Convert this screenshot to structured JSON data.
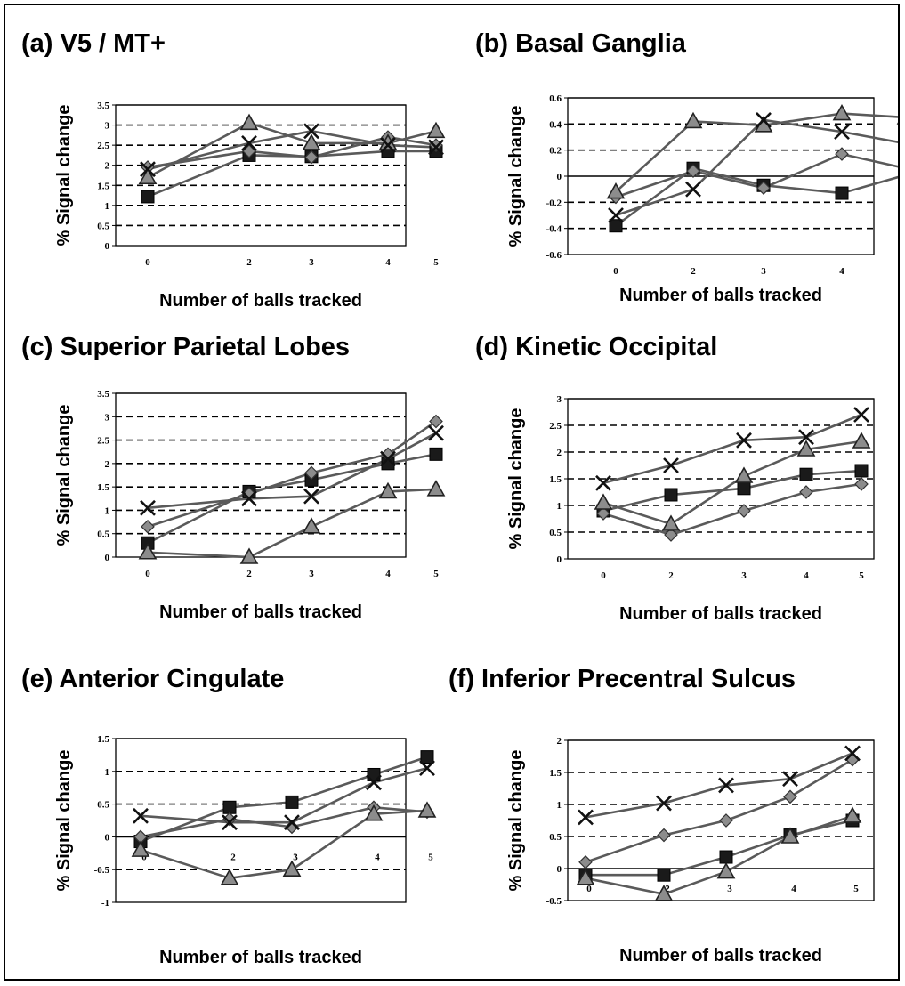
{
  "colors": {
    "series_line": "#5a5a5a",
    "marker_fill_dark": "#1a1a1a",
    "marker_fill_grey": "#8c8c8c",
    "grid": "#000000"
  },
  "chart_data": [
    {
      "type": "line",
      "title": "(a) V5 / MT+",
      "xlabel": "Number of balls tracked",
      "ylabel": "% Signal change",
      "categories": [
        "0",
        "2",
        "3",
        "4",
        "5"
      ],
      "ylim": [
        0,
        3.5
      ],
      "yticks": [
        0,
        0.5,
        1,
        1.5,
        2,
        2.5,
        3,
        3.5
      ],
      "zero_line": false,
      "series": [
        {
          "marker": "square",
          "values": [
            1.22,
            2.25,
            2.22,
            2.35,
            2.35
          ]
        },
        {
          "marker": "diamond",
          "values": [
            1.95,
            2.35,
            2.2,
            2.7,
            2.5
          ]
        },
        {
          "marker": "triangle",
          "values": [
            1.7,
            3.05,
            2.55,
            2.55,
            2.85
          ]
        },
        {
          "marker": "cross",
          "values": [
            1.9,
            2.55,
            2.85,
            2.5,
            2.45
          ]
        }
      ]
    },
    {
      "type": "line",
      "title": "(b) Basal Ganglia",
      "xlabel": "Number of balls tracked",
      "ylabel": "% Signal change",
      "categories": [
        "0",
        "2",
        "3",
        "4",
        "5"
      ],
      "ylim": [
        -0.6,
        0.6
      ],
      "yticks": [
        -0.6,
        -0.4,
        -0.2,
        0,
        0.2,
        0.4,
        0.6
      ],
      "zero_line": true,
      "series": [
        {
          "marker": "square",
          "values": [
            -0.38,
            0.06,
            -0.07,
            -0.13,
            0.01
          ]
        },
        {
          "marker": "diamond",
          "values": [
            -0.16,
            0.04,
            -0.09,
            0.17,
            0.06
          ]
        },
        {
          "marker": "triangle",
          "values": [
            -0.12,
            0.42,
            0.39,
            0.48,
            0.45
          ]
        },
        {
          "marker": "cross",
          "values": [
            -0.3,
            -0.1,
            0.43,
            0.34,
            0.25
          ]
        }
      ]
    },
    {
      "type": "line",
      "title": "(c) Superior Parietal Lobes",
      "xlabel": "Number of balls tracked",
      "ylabel": "% Signal change",
      "categories": [
        "0",
        "2",
        "3",
        "4",
        "5"
      ],
      "ylim": [
        0,
        3.5
      ],
      "yticks": [
        0,
        0.5,
        1,
        1.5,
        2,
        2.5,
        3,
        3.5
      ],
      "zero_line": false,
      "series": [
        {
          "marker": "square",
          "values": [
            0.3,
            1.4,
            1.65,
            2.0,
            2.2
          ]
        },
        {
          "marker": "diamond",
          "values": [
            0.65,
            1.35,
            1.8,
            2.2,
            2.9
          ]
        },
        {
          "marker": "triangle",
          "values": [
            0.1,
            0.0,
            0.65,
            1.4,
            1.45
          ]
        },
        {
          "marker": "cross",
          "values": [
            1.05,
            1.25,
            1.3,
            2.1,
            2.65
          ]
        }
      ]
    },
    {
      "type": "line",
      "title": "(d) Kinetic Occipital",
      "xlabel": "Number of balls tracked",
      "ylabel": "% Signal change",
      "categories": [
        "0",
        "2",
        "3",
        "4",
        "5"
      ],
      "ylim": [
        0,
        3
      ],
      "yticks": [
        0,
        0.5,
        1,
        1.5,
        2,
        2.5,
        3
      ],
      "zero_line": false,
      "series": [
        {
          "marker": "square",
          "values": [
            0.9,
            1.2,
            1.32,
            1.58,
            1.65
          ]
        },
        {
          "marker": "diamond",
          "values": [
            0.85,
            0.45,
            0.9,
            1.25,
            1.4
          ]
        },
        {
          "marker": "triangle",
          "values": [
            1.05,
            0.65,
            1.55,
            2.05,
            2.2
          ]
        },
        {
          "marker": "cross",
          "values": [
            1.42,
            1.75,
            2.22,
            2.28,
            2.7
          ]
        }
      ]
    },
    {
      "type": "line",
      "title": "(e) Anterior Cingulate",
      "xlabel": "Number of balls tracked",
      "ylabel": "% Signal change",
      "categories": [
        "0",
        "2",
        "3",
        "4",
        "5"
      ],
      "ylim": [
        -1,
        1.5
      ],
      "yticks": [
        -1,
        -0.5,
        0,
        0.5,
        1,
        1.5
      ],
      "zero_line": true,
      "series": [
        {
          "marker": "square",
          "values": [
            -0.07,
            0.45,
            0.53,
            0.95,
            1.22
          ]
        },
        {
          "marker": "diamond",
          "values": [
            0.0,
            0.27,
            0.15,
            0.45,
            0.38
          ]
        },
        {
          "marker": "triangle",
          "values": [
            -0.2,
            -0.63,
            -0.5,
            0.35,
            0.4
          ]
        },
        {
          "marker": "cross",
          "values": [
            0.32,
            0.22,
            0.22,
            0.83,
            1.05
          ]
        }
      ]
    },
    {
      "type": "line",
      "title": "(f) Inferior Precentral Sulcus",
      "xlabel": "Number of balls tracked",
      "ylabel": "% Signal change",
      "categories": [
        "0",
        "2",
        "3",
        "4",
        "5"
      ],
      "ylim": [
        -0.5,
        2
      ],
      "yticks": [
        -0.5,
        0,
        0.5,
        1,
        1.5,
        2
      ],
      "zero_line": true,
      "series": [
        {
          "marker": "square",
          "values": [
            -0.1,
            -0.1,
            0.18,
            0.52,
            0.75
          ]
        },
        {
          "marker": "diamond",
          "values": [
            0.1,
            0.52,
            0.75,
            1.12,
            1.7
          ]
        },
        {
          "marker": "triangle",
          "values": [
            -0.15,
            -0.4,
            -0.05,
            0.5,
            0.82
          ]
        },
        {
          "marker": "cross",
          "values": [
            0.8,
            1.02,
            1.3,
            1.4,
            1.8
          ]
        }
      ]
    }
  ]
}
